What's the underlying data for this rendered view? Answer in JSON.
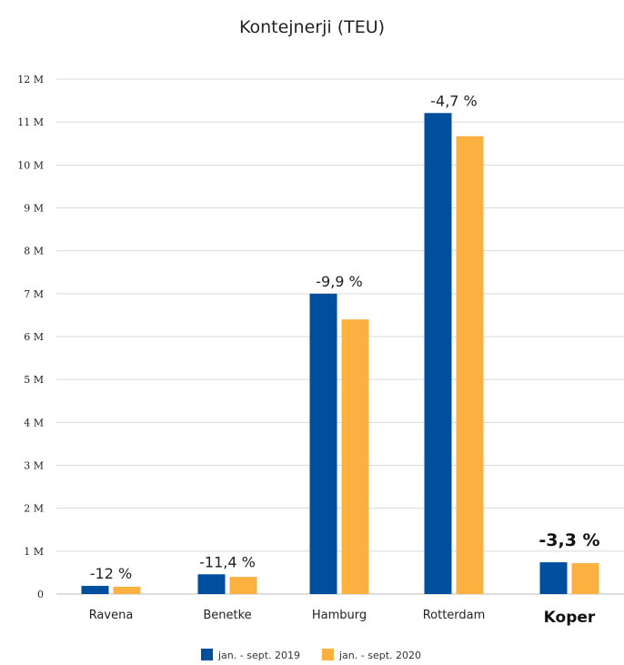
{
  "chart_data": {
    "type": "bar",
    "title": "Kontejnerji (TEU)",
    "xlabel": "",
    "ylabel": "",
    "categories": [
      "Ravena",
      "Benetke",
      "Hamburg",
      "Rotterdam",
      "Koper"
    ],
    "emphasized_category": "Koper",
    "series": [
      {
        "name": "jan. - sept. 2019",
        "color": "#004f9f",
        "values": [
          0.19,
          0.46,
          7.0,
          11.21,
          0.74
        ]
      },
      {
        "name": "jan. - sept. 2020",
        "color": "#fbb040",
        "values": [
          0.17,
          0.4,
          6.4,
          10.67,
          0.72
        ]
      }
    ],
    "change_labels": [
      "-12 %",
      "-11,4 %",
      "-9,9 %",
      "-4,7 %",
      "-3,3 %"
    ],
    "ylim": [
      0,
      12
    ],
    "yticks": [
      0,
      1,
      2,
      3,
      4,
      5,
      6,
      7,
      8,
      9,
      10,
      11,
      12
    ],
    "ytick_labels": [
      "0",
      "1 M",
      "2 M",
      "3 M",
      "4 M",
      "5 M",
      "6 M",
      "7 M",
      "8 M",
      "9 M",
      "10 M",
      "11 M",
      "12 M"
    ],
    "grid": true,
    "legend_position": "bottom"
  }
}
